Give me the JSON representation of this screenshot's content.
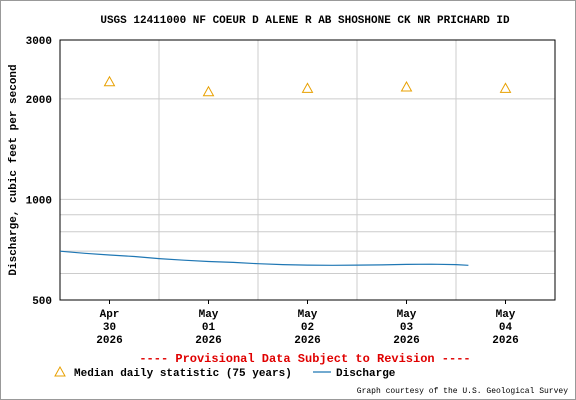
{
  "chart_data": {
    "type": "line",
    "title": "USGS 12411000 NF COEUR D ALENE R AB SHOSHONE CK NR PRICHARD ID",
    "y_label": "Discharge, cubic feet per second",
    "note": "---- Provisional Data Subject to Revision ----",
    "credit": "Graph courtesy of the U.S. Geological Survey",
    "log_y": true,
    "grid": true,
    "ylim": [
      500,
      3000
    ],
    "yticks": [
      500,
      1000,
      2000,
      3000
    ],
    "minor_gridlines": [
      600,
      700,
      800,
      900
    ],
    "xlim": [
      "2026-04-30T00:00",
      "2026-05-05T00:00"
    ],
    "xticks": [
      {
        "value": "2026-04-30T12:00",
        "label": "Apr\n30\n2026"
      },
      {
        "value": "2026-05-01T12:00",
        "label": "May\n01\n2026"
      },
      {
        "value": "2026-05-02T12:00",
        "label": "May\n02\n2026"
      },
      {
        "value": "2026-05-03T12:00",
        "label": "May\n03\n2026"
      },
      {
        "value": "2026-05-04T12:00",
        "label": "May\n04\n2026"
      }
    ],
    "xgrid": [
      "2026-05-01T00:00",
      "2026-05-02T00:00",
      "2026-05-03T00:00",
      "2026-05-04T00:00"
    ],
    "series": [
      {
        "name": "Median daily statistic (75 years)",
        "color": "#e8a000",
        "marker": "triangle",
        "x": [
          "2026-04-30T12:00",
          "2026-05-01T12:00",
          "2026-05-02T12:00",
          "2026-05-03T12:00",
          "2026-05-04T12:00"
        ],
        "values": [
          2250,
          2100,
          2150,
          2170,
          2150
        ]
      },
      {
        "name": "Discharge",
        "color": "#1f77b4",
        "marker": "line",
        "x": [
          "2026-04-30T00:00",
          "2026-04-30T06:00",
          "2026-04-30T12:00",
          "2026-04-30T18:00",
          "2026-05-01T00:00",
          "2026-05-01T06:00",
          "2026-05-01T12:00",
          "2026-05-01T18:00",
          "2026-05-02T00:00",
          "2026-05-02T06:00",
          "2026-05-02T12:00",
          "2026-05-02T18:00",
          "2026-05-03T00:00",
          "2026-05-03T06:00",
          "2026-05-03T12:00",
          "2026-05-03T18:00",
          "2026-05-04T00:00",
          "2026-05-04T03:00"
        ],
        "values": [
          700,
          690,
          682,
          675,
          665,
          658,
          652,
          648,
          642,
          638,
          636,
          635,
          636,
          637,
          639,
          640,
          638,
          635
        ]
      }
    ]
  }
}
